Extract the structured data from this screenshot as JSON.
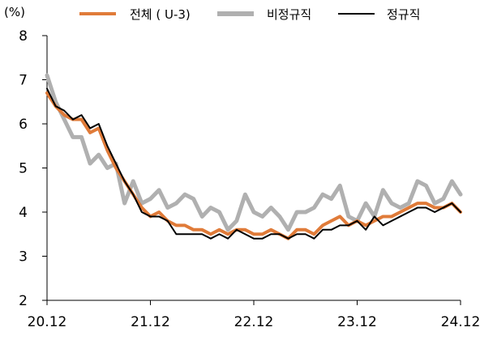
{
  "chart_data": {
    "type": "line",
    "unit_label": "(%)",
    "ylim": [
      2,
      8
    ],
    "y_ticks": [
      "2",
      "3",
      "4",
      "5",
      "6",
      "7",
      "8"
    ],
    "x_tick_labels": [
      "20.12",
      "21.12",
      "22.12",
      "23.12",
      "24.12"
    ],
    "x_tick_indices": [
      0,
      12,
      24,
      36,
      48
    ],
    "grid": false,
    "legend_position": "top",
    "series": [
      {
        "name": "전체 ( U-3)",
        "color": "#E07B39",
        "style": "medium",
        "values": [
          6.7,
          6.4,
          6.2,
          6.1,
          6.1,
          5.8,
          5.9,
          5.4,
          5.0,
          4.7,
          4.4,
          4.1,
          3.9,
          4.0,
          3.8,
          3.7,
          3.7,
          3.6,
          3.6,
          3.5,
          3.6,
          3.5,
          3.6,
          3.6,
          3.5,
          3.5,
          3.6,
          3.5,
          3.4,
          3.6,
          3.6,
          3.5,
          3.7,
          3.8,
          3.9,
          3.7,
          3.8,
          3.7,
          3.8,
          3.9,
          3.9,
          4.0,
          4.1,
          4.2,
          4.2,
          4.1,
          4.1,
          4.2,
          4.0
        ]
      },
      {
        "name": "비정규직",
        "color": "#B0B0B0",
        "style": "thick",
        "values": [
          7.1,
          6.5,
          6.1,
          5.7,
          5.7,
          5.1,
          5.3,
          5.0,
          5.1,
          4.2,
          4.7,
          4.2,
          4.3,
          4.5,
          4.1,
          4.2,
          4.4,
          4.3,
          3.9,
          4.1,
          4.0,
          3.6,
          3.8,
          4.4,
          4.0,
          3.9,
          4.1,
          3.9,
          3.6,
          4.0,
          4.0,
          4.1,
          4.4,
          4.3,
          4.6,
          3.9,
          3.8,
          4.2,
          3.9,
          4.5,
          4.2,
          4.1,
          4.2,
          4.7,
          4.6,
          4.2,
          4.3,
          4.7,
          4.4
        ]
      },
      {
        "name": "정규직",
        "color": "#000000",
        "style": "thin",
        "values": [
          6.8,
          6.4,
          6.3,
          6.1,
          6.2,
          5.9,
          6.0,
          5.5,
          5.1,
          4.7,
          4.4,
          4.0,
          3.9,
          3.9,
          3.8,
          3.5,
          3.5,
          3.5,
          3.5,
          3.4,
          3.5,
          3.4,
          3.6,
          3.5,
          3.4,
          3.4,
          3.5,
          3.5,
          3.4,
          3.5,
          3.5,
          3.4,
          3.6,
          3.6,
          3.7,
          3.7,
          3.8,
          3.6,
          3.9,
          3.7,
          3.8,
          3.9,
          4.0,
          4.1,
          4.1,
          4.0,
          4.1,
          4.2,
          4.0
        ]
      }
    ]
  }
}
